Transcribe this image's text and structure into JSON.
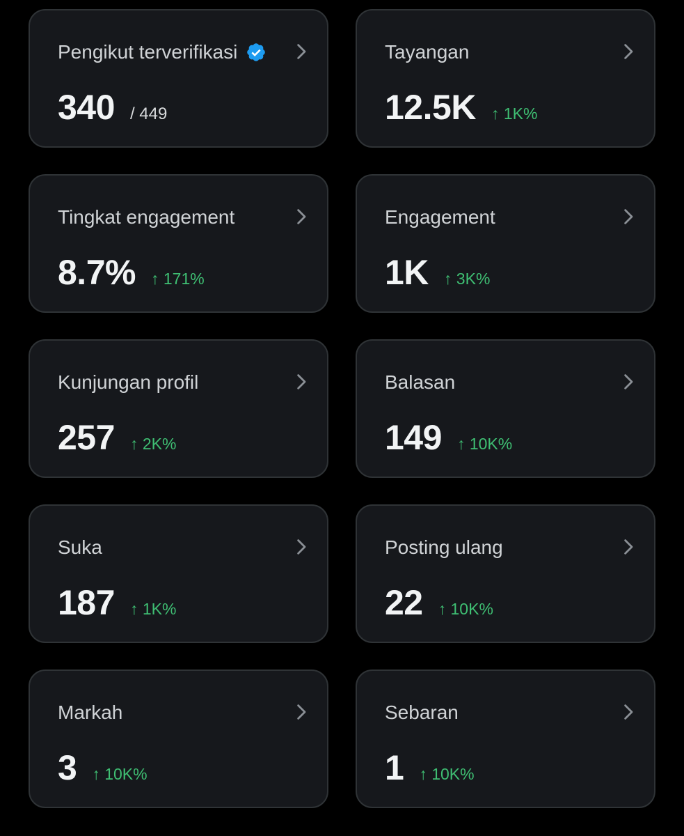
{
  "cards": [
    {
      "title": "Pengikut terverifikasi",
      "value": "340",
      "total": "/ 449",
      "verified_icon": "verified-badge-icon",
      "verified_color": "#1d9bf0"
    },
    {
      "title": "Tayangan",
      "value": "12.5K",
      "delta": "↑ 1K%"
    },
    {
      "title": "Tingkat engagement",
      "value": "8.7%",
      "delta": "↑ 171%"
    },
    {
      "title": "Engagement",
      "value": "1K",
      "delta": "↑ 3K%"
    },
    {
      "title": "Kunjungan profil",
      "value": "257",
      "delta": "↑ 2K%"
    },
    {
      "title": "Balasan",
      "value": "149",
      "delta": "↑ 10K%"
    },
    {
      "title": "Suka",
      "value": "187",
      "delta": "↑ 1K%"
    },
    {
      "title": "Posting ulang",
      "value": "22",
      "delta": "↑ 10K%"
    },
    {
      "title": "Markah",
      "value": "3",
      "delta": "↑ 10K%"
    },
    {
      "title": "Sebaran",
      "value": "1",
      "delta": "↑ 10K%"
    }
  ],
  "colors": {
    "background": "#000000",
    "card": "#16181c",
    "card_border": "#2f3336",
    "positive_delta": "#3fbf73",
    "verified": "#1d9bf0"
  },
  "icons": {
    "chevron": "chevron-right-icon",
    "verified": "verified-badge-icon"
  }
}
